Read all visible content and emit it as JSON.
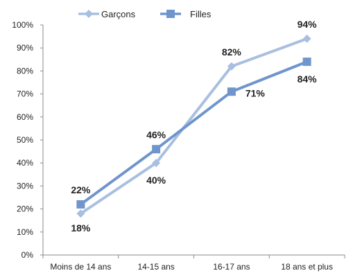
{
  "chart_data": {
    "type": "line",
    "categories": [
      "Moins de 14 ans",
      "14-15 ans",
      "16-17 ans",
      "18 ans et plus"
    ],
    "series": [
      {
        "name": "Garçons",
        "values": [
          18,
          40,
          82,
          94
        ],
        "labels": [
          "18%",
          "40%",
          "82%",
          "94%"
        ],
        "color": "#a9bfe0",
        "marker": "diamond"
      },
      {
        "name": "Filles",
        "values": [
          22,
          46,
          71,
          84
        ],
        "labels": [
          "22%",
          "46%",
          "71%",
          "84%"
        ],
        "color": "#6f95cc",
        "marker": "square"
      }
    ],
    "ylim": [
      0,
      100
    ],
    "yticks": [
      "0%",
      "10%",
      "20%",
      "30%",
      "40%",
      "50%",
      "60%",
      "70%",
      "80%",
      "90%",
      "100%"
    ],
    "grid": false,
    "legend": "top"
  }
}
